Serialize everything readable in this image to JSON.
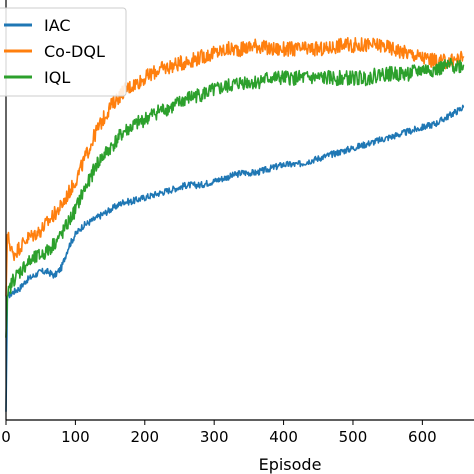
{
  "chart_data": {
    "type": "line",
    "xlabel": "Episode",
    "ylabel": "",
    "xlim": [
      0,
      660
    ],
    "ylim": [
      0,
      1
    ],
    "xticks": [
      0,
      100,
      200,
      300,
      400,
      500,
      600
    ],
    "grid": false,
    "legend": "top-left",
    "series": [
      {
        "name": "IAC",
        "color": "#1f77b4",
        "points": [
          [
            0,
            0.02
          ],
          [
            2,
            0.3
          ],
          [
            10,
            0.31
          ],
          [
            20,
            0.32
          ],
          [
            30,
            0.34
          ],
          [
            40,
            0.35
          ],
          [
            50,
            0.36
          ],
          [
            60,
            0.36
          ],
          [
            70,
            0.35
          ],
          [
            80,
            0.37
          ],
          [
            90,
            0.42
          ],
          [
            100,
            0.45
          ],
          [
            110,
            0.47
          ],
          [
            120,
            0.48
          ],
          [
            130,
            0.49
          ],
          [
            140,
            0.5
          ],
          [
            150,
            0.51
          ],
          [
            160,
            0.52
          ],
          [
            170,
            0.53
          ],
          [
            180,
            0.53
          ],
          [
            200,
            0.54
          ],
          [
            220,
            0.55
          ],
          [
            240,
            0.56
          ],
          [
            260,
            0.57
          ],
          [
            280,
            0.57
          ],
          [
            300,
            0.58
          ],
          [
            320,
            0.59
          ],
          [
            340,
            0.6
          ],
          [
            360,
            0.6
          ],
          [
            380,
            0.61
          ],
          [
            400,
            0.62
          ],
          [
            420,
            0.62
          ],
          [
            440,
            0.63
          ],
          [
            460,
            0.64
          ],
          [
            480,
            0.65
          ],
          [
            500,
            0.66
          ],
          [
            520,
            0.67
          ],
          [
            540,
            0.68
          ],
          [
            560,
            0.69
          ],
          [
            580,
            0.7
          ],
          [
            600,
            0.71
          ],
          [
            620,
            0.72
          ],
          [
            640,
            0.74
          ],
          [
            660,
            0.76
          ]
        ]
      },
      {
        "name": "Co-DQL",
        "color": "#ff7f0e",
        "points": [
          [
            0,
            0.3
          ],
          [
            2,
            0.45
          ],
          [
            10,
            0.4
          ],
          [
            20,
            0.42
          ],
          [
            30,
            0.44
          ],
          [
            40,
            0.45
          ],
          [
            50,
            0.46
          ],
          [
            60,
            0.48
          ],
          [
            70,
            0.5
          ],
          [
            80,
            0.52
          ],
          [
            90,
            0.55
          ],
          [
            100,
            0.58
          ],
          [
            110,
            0.62
          ],
          [
            120,
            0.66
          ],
          [
            130,
            0.7
          ],
          [
            140,
            0.73
          ],
          [
            150,
            0.76
          ],
          [
            160,
            0.78
          ],
          [
            170,
            0.8
          ],
          [
            180,
            0.81
          ],
          [
            200,
            0.83
          ],
          [
            220,
            0.85
          ],
          [
            240,
            0.86
          ],
          [
            260,
            0.87
          ],
          [
            280,
            0.88
          ],
          [
            300,
            0.89
          ],
          [
            320,
            0.9
          ],
          [
            340,
            0.9
          ],
          [
            360,
            0.91
          ],
          [
            380,
            0.9
          ],
          [
            400,
            0.9
          ],
          [
            420,
            0.9
          ],
          [
            440,
            0.9
          ],
          [
            460,
            0.9
          ],
          [
            480,
            0.91
          ],
          [
            500,
            0.91
          ],
          [
            520,
            0.91
          ],
          [
            540,
            0.91
          ],
          [
            560,
            0.9
          ],
          [
            580,
            0.89
          ],
          [
            600,
            0.88
          ],
          [
            620,
            0.87
          ],
          [
            640,
            0.87
          ],
          [
            660,
            0.88
          ]
        ]
      },
      {
        "name": "IQL",
        "color": "#2ca02c",
        "points": [
          [
            0,
            0.2
          ],
          [
            2,
            0.3
          ],
          [
            10,
            0.34
          ],
          [
            20,
            0.36
          ],
          [
            30,
            0.38
          ],
          [
            40,
            0.39
          ],
          [
            50,
            0.4
          ],
          [
            60,
            0.41
          ],
          [
            70,
            0.43
          ],
          [
            80,
            0.45
          ],
          [
            90,
            0.48
          ],
          [
            100,
            0.51
          ],
          [
            110,
            0.55
          ],
          [
            120,
            0.58
          ],
          [
            130,
            0.62
          ],
          [
            140,
            0.64
          ],
          [
            150,
            0.66
          ],
          [
            160,
            0.68
          ],
          [
            170,
            0.7
          ],
          [
            180,
            0.71
          ],
          [
            200,
            0.73
          ],
          [
            220,
            0.75
          ],
          [
            240,
            0.76
          ],
          [
            260,
            0.78
          ],
          [
            280,
            0.79
          ],
          [
            300,
            0.8
          ],
          [
            320,
            0.81
          ],
          [
            340,
            0.82
          ],
          [
            360,
            0.82
          ],
          [
            380,
            0.83
          ],
          [
            400,
            0.83
          ],
          [
            420,
            0.83
          ],
          [
            440,
            0.83
          ],
          [
            460,
            0.83
          ],
          [
            480,
            0.83
          ],
          [
            500,
            0.83
          ],
          [
            520,
            0.83
          ],
          [
            540,
            0.84
          ],
          [
            560,
            0.84
          ],
          [
            580,
            0.84
          ],
          [
            600,
            0.85
          ],
          [
            620,
            0.85
          ],
          [
            640,
            0.86
          ],
          [
            660,
            0.86
          ]
        ]
      }
    ]
  }
}
